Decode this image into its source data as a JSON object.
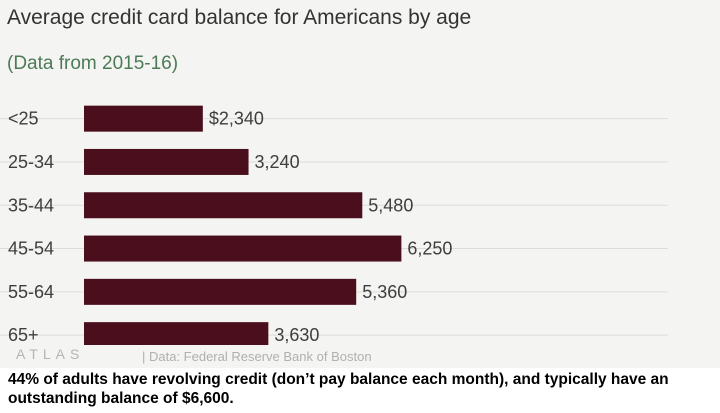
{
  "chart_data": {
    "type": "bar",
    "orientation": "horizontal",
    "title": "Average credit card balance for Americans by age",
    "subtitle": "(Data from 2015-16)",
    "categories": [
      "<25",
      "25-34",
      "35-44",
      "45-54",
      "55-64",
      "65+"
    ],
    "values": [
      2340,
      3240,
      5480,
      6250,
      5360,
      3630
    ],
    "value_labels": [
      "$2,340",
      "3,240",
      "5,480",
      "6,250",
      "5,360",
      "3,630"
    ],
    "xlim": [
      0,
      11500
    ],
    "grid": true,
    "legend": "none",
    "bar_color": "#4a0e1c"
  },
  "logo_text": "ATLAS",
  "source": "| Data: Federal Reserve Bank of Boston",
  "caption": "44% of adults have revolving credit (don’t pay balance each month), and typically have an outstanding balance of $6,600."
}
